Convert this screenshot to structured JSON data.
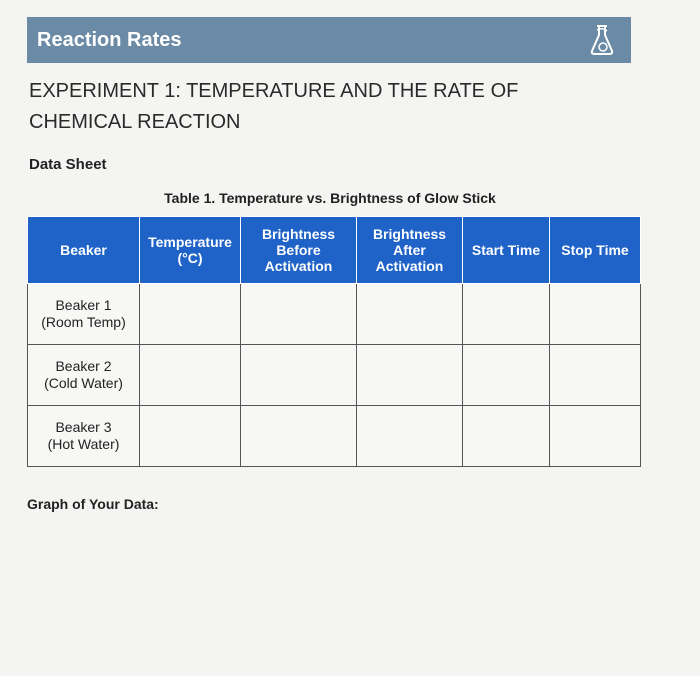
{
  "header": {
    "title": "Reaction Rates"
  },
  "heading": "EXPERIMENT 1: TEMPERATURE AND THE RATE OF CHEMICAL REACTION",
  "section": "Data Sheet",
  "table": {
    "caption": "Table 1. Temperature vs. Brightness of Glow Stick",
    "columns": [
      [
        "Beaker"
      ],
      [
        "Temperature",
        "(°C)"
      ],
      [
        "Brightness",
        "Before",
        "Activation"
      ],
      [
        "Brightness",
        "After",
        "Activation"
      ],
      [
        "Start Time"
      ],
      [
        "Stop Time"
      ]
    ],
    "rows": [
      [
        "Beaker 1",
        "(Room Temp)"
      ],
      [
        "Beaker 2",
        "(Cold Water)"
      ],
      [
        "Beaker 3",
        "(Hot Water)"
      ]
    ]
  },
  "graph_label": "Graph of Your Data:"
}
